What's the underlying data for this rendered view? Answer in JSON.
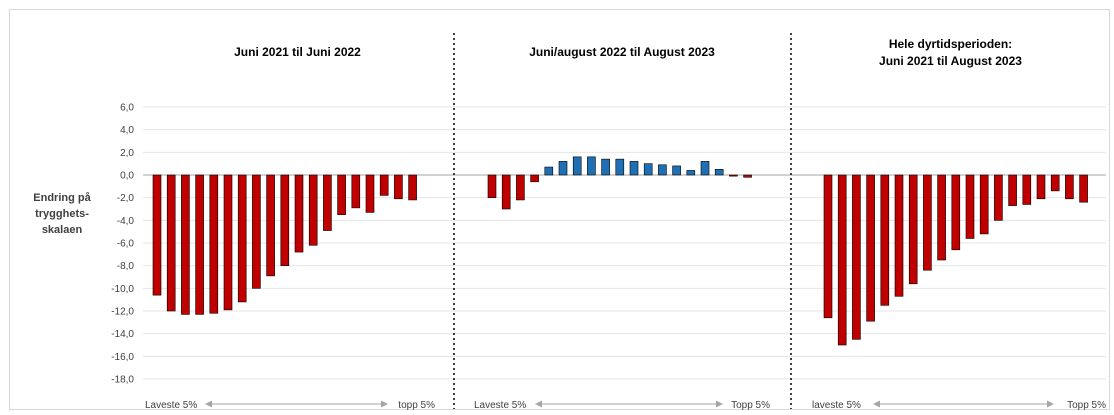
{
  "chart_data": {
    "type": "bar",
    "ylabel": [
      "Endring på",
      "trygghets-",
      "skalaen"
    ],
    "ylim": [
      -18,
      6
    ],
    "yticks": [
      "6,0",
      "4,0",
      "2,0",
      "0,0",
      "-2,0",
      "-4,0",
      "-6,0",
      "-8,0",
      "-10,0",
      "-12,0",
      "-14,0",
      "-16,0",
      "-18,0"
    ],
    "ytick_values": [
      6,
      4,
      2,
      0,
      -2,
      -4,
      -6,
      -8,
      -10,
      -12,
      -14,
      -16,
      -18
    ],
    "grid": true,
    "colors": {
      "negative": "#c00000",
      "positive": "#1f6fb4"
    },
    "panels": [
      {
        "title": [
          "Juni 2021 til Juni 2022"
        ],
        "footer_left": "Laveste 5%",
        "footer_right": "topp 5%",
        "values": [
          -10.6,
          -12.0,
          -12.3,
          -12.3,
          -12.2,
          -11.9,
          -11.2,
          -10.0,
          -8.9,
          -8.0,
          -6.8,
          -6.2,
          -4.9,
          -3.5,
          -2.9,
          -3.3,
          -1.8,
          -2.1,
          -2.2
        ]
      },
      {
        "title": [
          "Juni/august 2022 til August 2023"
        ],
        "footer_left": "Laveste 5%",
        "footer_right": "Topp 5%",
        "values": [
          -2.0,
          -3.0,
          -2.2,
          -0.6,
          0.7,
          1.2,
          1.6,
          1.6,
          1.4,
          1.4,
          1.2,
          1.0,
          0.9,
          0.8,
          0.4,
          1.2,
          0.5,
          -0.1,
          -0.2
        ]
      },
      {
        "title": [
          "Hele dyrtidsperioden:",
          "Juni 2021 til August 2023"
        ],
        "footer_left": "laveste 5%",
        "footer_right": "Topp 5%",
        "values": [
          -12.6,
          -15.0,
          -14.5,
          -12.9,
          -11.5,
          -10.7,
          -9.6,
          -8.4,
          -7.5,
          -6.6,
          -5.6,
          -5.2,
          -4.0,
          -2.7,
          -2.6,
          -2.1,
          -1.4,
          -2.1,
          -2.4
        ]
      }
    ]
  }
}
